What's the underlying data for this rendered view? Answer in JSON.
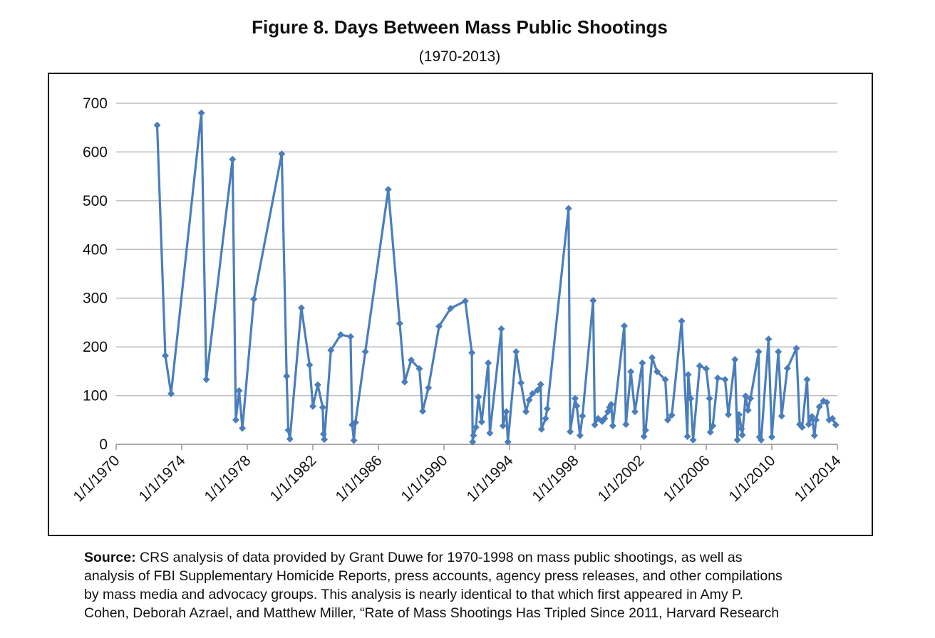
{
  "chart_data": {
    "type": "line",
    "title": "Figure 8. Days Between Mass Public Shootings",
    "subtitle": "(1970-2013)",
    "color": "#4a7ebb",
    "grid": true,
    "xlim": [
      1970,
      2014
    ],
    "xticks": [
      {
        "value": 1970,
        "label": "1/1/1970"
      },
      {
        "value": 1974,
        "label": "1/1/1974"
      },
      {
        "value": 1978,
        "label": "1/1/1978"
      },
      {
        "value": 1982,
        "label": "1/1/1982"
      },
      {
        "value": 1986,
        "label": "1/1/1986"
      },
      {
        "value": 1990,
        "label": "1/1/1990"
      },
      {
        "value": 1994,
        "label": "1/1/1994"
      },
      {
        "value": 1998,
        "label": "1/1/1998"
      },
      {
        "value": 2002,
        "label": "1/1/2002"
      },
      {
        "value": 2006,
        "label": "1/1/2006"
      },
      {
        "value": 2010,
        "label": "1/1/2010"
      },
      {
        "value": 2014,
        "label": "1/1/2014"
      }
    ],
    "ylim": [
      0,
      700
    ],
    "yticks": [
      0,
      100,
      200,
      300,
      400,
      500,
      600,
      700
    ],
    "x": [
      1972.5,
      1973.0,
      1973.35,
      1975.2,
      1975.5,
      1977.1,
      1977.3,
      1977.5,
      1977.7,
      1978.4,
      1980.1,
      1980.4,
      1980.5,
      1980.6,
      1981.3,
      1981.8,
      1982.0,
      1982.3,
      1982.6,
      1982.65,
      1982.7,
      1983.1,
      1983.7,
      1984.3,
      1984.4,
      1984.5,
      1984.6,
      1985.2,
      1986.6,
      1987.3,
      1987.6,
      1988.0,
      1988.5,
      1988.7,
      1989.05,
      1989.7,
      1990.4,
      1991.3,
      1991.7,
      1991.75,
      1991.8,
      1991.95,
      1992.1,
      1992.3,
      1992.7,
      1992.8,
      1993.5,
      1993.6,
      1993.8,
      1993.9,
      1994.4,
      1994.7,
      1995.0,
      1995.2,
      1995.4,
      1995.7,
      1995.9,
      1995.95,
      1996.2,
      1996.3,
      1997.6,
      1997.7,
      1998.0,
      1998.1,
      1998.3,
      1998.45,
      1999.1,
      1999.2,
      1999.4,
      1999.65,
      1999.8,
      2000.0,
      2000.1,
      2000.2,
      2000.3,
      2001.0,
      2001.1,
      2001.4,
      2001.65,
      2002.1,
      2002.2,
      2002.3,
      2002.7,
      2003.0,
      2003.5,
      2003.65,
      2003.9,
      2004.5,
      2004.85,
      2004.9,
      2005.05,
      2005.2,
      2005.6,
      2006.0,
      2006.2,
      2006.25,
      2006.4,
      2006.7,
      2007.15,
      2007.35,
      2007.75,
      2007.9,
      2008.0,
      2008.15,
      2008.2,
      2008.4,
      2008.55,
      2008.7,
      2009.2,
      2009.25,
      2009.35,
      2009.8,
      2010.0,
      2010.4,
      2010.6,
      2010.95,
      2011.5,
      2011.7,
      2011.85,
      2012.15,
      2012.25,
      2012.45,
      2012.6,
      2012.7,
      2012.9,
      2013.15,
      2013.35,
      2013.5,
      2013.7,
      2013.9
    ],
    "values": [
      655,
      182,
      104,
      680,
      133,
      585,
      50,
      110,
      33,
      298,
      596,
      140,
      29,
      11,
      280,
      163,
      78,
      122,
      76,
      21,
      10,
      193,
      225,
      221,
      40,
      8,
      45,
      190,
      523,
      248,
      128,
      173,
      155,
      68,
      116,
      242,
      279,
      294,
      188,
      5,
      18,
      35,
      97,
      46,
      167,
      23,
      237,
      38,
      67,
      5,
      190,
      126,
      67,
      91,
      104,
      111,
      123,
      31,
      53,
      73,
      484,
      26,
      94,
      79,
      18,
      58,
      295,
      40,
      53,
      47,
      53,
      67,
      76,
      82,
      38,
      243,
      41,
      149,
      67,
      167,
      16,
      29,
      178,
      149,
      133,
      50,
      60,
      253,
      16,
      143,
      94,
      9,
      161,
      155,
      94,
      25,
      38,
      136,
      133,
      61,
      174,
      9,
      61,
      32,
      19,
      99,
      70,
      94,
      190,
      15,
      9,
      216,
      15,
      190,
      58,
      156,
      197,
      41,
      35,
      133,
      41,
      57,
      18,
      50,
      77,
      89,
      86,
      50,
      53,
      40
    ],
    "source_label": "Source:",
    "source_lines": [
      " CRS analysis of data provided by Grant Duwe for 1970-1998 on mass public shootings, as well as",
      "analysis of FBI Supplementary Homicide Reports, press accounts, agency press releases, and other compilations",
      "by mass media and advocacy groups. This analysis is nearly identical to that which first appeared in Amy P.",
      "Cohen, Deborah Azrael, and Matthew Miller, “Rate of Mass Shootings Has Tripled Since 2011, Harvard Research"
    ]
  }
}
